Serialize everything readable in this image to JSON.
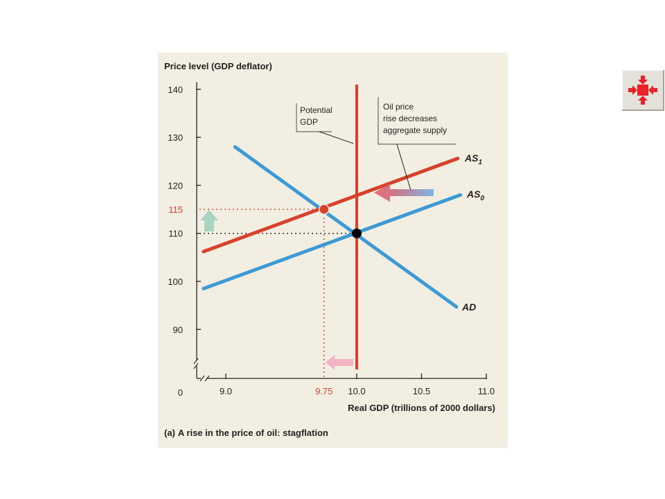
{
  "chart_data": {
    "type": "line",
    "ylabel": "Price level (GDP deflator)",
    "xlabel": "Real GDP (trillions of 2000 dollars)",
    "caption_prefix": "(a)",
    "caption_text": "A rise in the price of oil: stagflation",
    "origin_label": "0",
    "xlim": [
      8.8,
      11.0
    ],
    "ylim": [
      80,
      142
    ],
    "x_ticks": [
      {
        "value": 9.0,
        "label": "9.0"
      },
      {
        "value": 10.0,
        "label": "10.0"
      },
      {
        "value": 10.5,
        "label": "10.5"
      },
      {
        "value": 11.0,
        "label": "11.0"
      }
    ],
    "y_ticks": [
      {
        "value": 90,
        "label": "90"
      },
      {
        "value": 100,
        "label": "100"
      },
      {
        "value": 110,
        "label": "110"
      },
      {
        "value": 120,
        "label": "120"
      },
      {
        "value": 130,
        "label": "130"
      },
      {
        "value": 140,
        "label": "140"
      }
    ],
    "highlight_x": {
      "value": 9.75,
      "label": "9.75"
    },
    "highlight_y": {
      "value": 115,
      "label": "115"
    },
    "series": [
      {
        "name": "AD",
        "color": "#3d9ad5",
        "points": [
          [
            9.07,
            128
          ],
          [
            10.77,
            94.7
          ]
        ]
      },
      {
        "name": "AS0",
        "label_main": "AS",
        "label_sub": "0",
        "color": "#3d9ad5",
        "points": [
          [
            8.83,
            98.5
          ],
          [
            10.8,
            118
          ]
        ]
      },
      {
        "name": "AS1",
        "label_main": "AS",
        "label_sub": "1",
        "color": "#d7412b",
        "points": [
          [
            8.83,
            106.2
          ],
          [
            10.78,
            125.6
          ]
        ]
      }
    ],
    "potential_gdp": {
      "x": 10.0,
      "y_range": [
        80.5,
        141
      ],
      "color": "#d7412b"
    },
    "equilibria": [
      {
        "x": 10.0,
        "y": 110,
        "color": "#000000"
      },
      {
        "x": 9.75,
        "y": 115,
        "color": "#d7412b"
      }
    ],
    "annotations": [
      {
        "lines": [
          "Potential",
          "GDP"
        ]
      },
      {
        "lines": [
          "Oil price",
          "rise decreases",
          "aggregate supply"
        ]
      }
    ]
  },
  "nav_icon": {
    "name": "shrink-arrows-icon",
    "color": "#e8242a"
  }
}
